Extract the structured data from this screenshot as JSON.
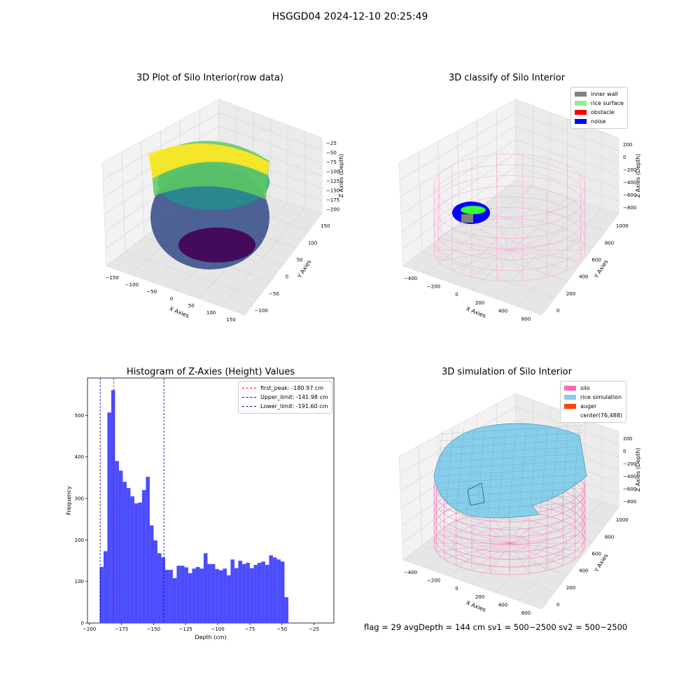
{
  "figure_title": "HSGGD04 2024-12-10 20:25:49",
  "footer": "flag = 29  avgDepth = 144 cm  sv1 = 500~2500  sv2 = 500~2500",
  "chart_data": [
    {
      "type": "scatter",
      "title": "3D Plot of Silo Interior(row data)",
      "xlabel": "X Axies",
      "ylabel": "Y Axies",
      "zlabel": "Z Axies (Depth)",
      "x_ticks": [
        "−150",
        "−100",
        "−50",
        "0",
        "50",
        "100",
        "150"
      ],
      "y_ticks": [
        "−100",
        "−50",
        "0",
        "50",
        "100",
        "150"
      ],
      "z_ticks": [
        "−25",
        "−50",
        "−75",
        "−100",
        "−125",
        "−150",
        "−175",
        "−200"
      ],
      "colormap": [
        "#440154",
        "#3b528b",
        "#21918c",
        "#5ec962",
        "#fde725"
      ]
    },
    {
      "type": "scatter",
      "title": "3D classify of Silo Interior",
      "xlabel": "X Axies",
      "ylabel": "Y Axies",
      "zlabel": "Z Axies (Depth)",
      "x_ticks": [
        "−400",
        "−200",
        "0",
        "200",
        "400",
        "600"
      ],
      "y_ticks": [
        "0",
        "200",
        "400",
        "600",
        "800",
        "1000"
      ],
      "z_ticks": [
        "200",
        "0",
        "−200",
        "−400",
        "−600",
        "−800"
      ],
      "legend": [
        {
          "label": "inner wall",
          "color": "#808080"
        },
        {
          "label": "rice surface",
          "color": "#90ee90"
        },
        {
          "label": "obstacle",
          "color": "#ff0000"
        },
        {
          "label": "noise",
          "color": "#0000ff"
        }
      ]
    },
    {
      "type": "bar",
      "title": "Histogram of Z-Axies (Height) Values",
      "xlabel": "Depth (cm)",
      "ylabel": "Frequency",
      "xlim": [
        -201.5,
        -9.5
      ],
      "ylim": [
        0,
        590
      ],
      "x_ticks": [
        -200,
        -175,
        -150,
        -125,
        -100,
        -75,
        -50,
        -25
      ],
      "x_tick_labels": [
        "−200",
        "−175",
        "−150",
        "−125",
        "−100",
        "−75",
        "−50",
        "−25"
      ],
      "y_ticks": [
        0,
        100,
        200,
        300,
        400,
        500
      ],
      "bin_start": -192.0,
      "bin_width": 3.0,
      "values": [
        135,
        173,
        507,
        561,
        390,
        367,
        340,
        325,
        305,
        288,
        290,
        320,
        352,
        235,
        199,
        168,
        158,
        128,
        128,
        108,
        138,
        138,
        134,
        120,
        131,
        135,
        131,
        168,
        142,
        142,
        130,
        127,
        131,
        115,
        153,
        132,
        150,
        142,
        145,
        132,
        140,
        145,
        148,
        140,
        163,
        158,
        153,
        148,
        62
      ],
      "bar_color": "#4c4cff",
      "lines": [
        {
          "label": "first_peak: -180.97 cm",
          "x": -180.97,
          "color": "#ff0000"
        },
        {
          "label": "Upper_limit: -141.98 cm",
          "x": -141.98,
          "color": "#0000aa"
        },
        {
          "label": "Lower_limit: -191.60 cm",
          "x": -191.6,
          "color": "#0000aa"
        }
      ]
    },
    {
      "type": "area",
      "title": "3D simulation of Silo Interior",
      "xlabel": "X Axies",
      "ylabel": "Y Axies",
      "zlabel": "Z Axies (Depth)",
      "x_ticks": [
        "−400",
        "−200",
        "0",
        "200",
        "400",
        "600"
      ],
      "y_ticks": [
        "0",
        "200",
        "400",
        "600",
        "800",
        "1000"
      ],
      "z_ticks": [
        "200",
        "0",
        "−200",
        "−400",
        "−600",
        "−800"
      ],
      "legend": [
        {
          "label": "silo",
          "color": "#ff69b4"
        },
        {
          "label": "rice simulation",
          "color": "#87ceeb"
        },
        {
          "label": "auger",
          "color": "#ff4500"
        },
        {
          "label": "center(76,488)",
          "color": ""
        }
      ]
    }
  ]
}
